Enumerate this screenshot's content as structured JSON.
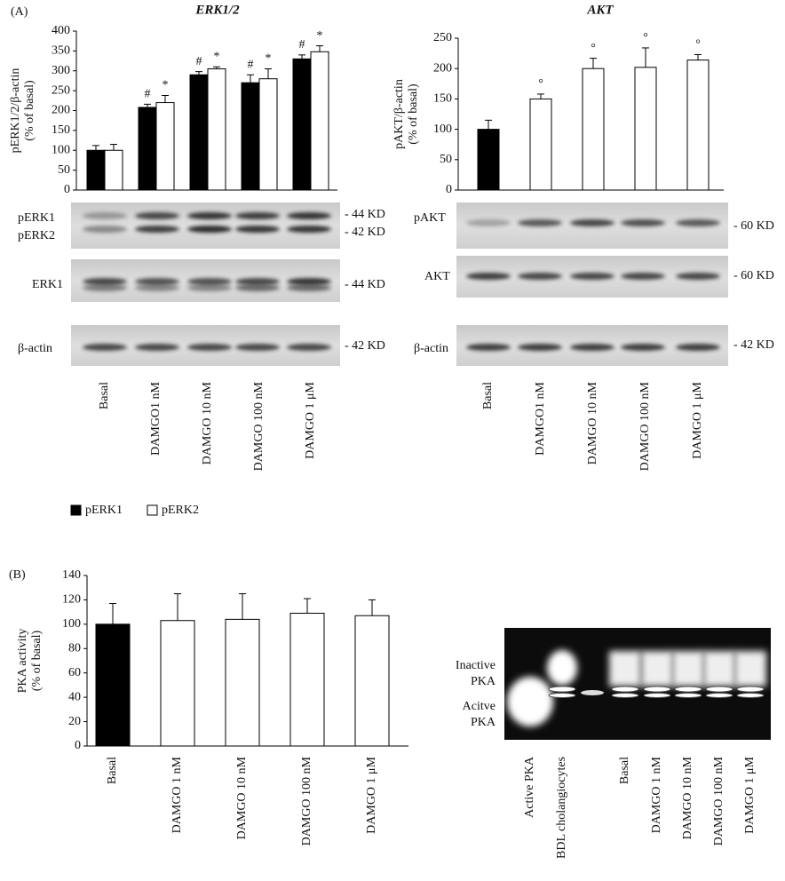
{
  "panel_labels": [
    "(A)",
    "(B)"
  ],
  "chart_data": [
    {
      "type": "bar",
      "title": "ERK1/2",
      "ylabel": [
        "pERK1/2/β-actin",
        "(% of basal)"
      ],
      "categories": [
        "Basal",
        "DAMGO1 nM",
        "DAMGO 10 nM",
        "DAMGO 100 nM",
        "DAMGO 1 μM"
      ],
      "series": [
        {
          "name": "pERK1",
          "color": "#000000",
          "values": [
            100,
            208,
            290,
            270,
            330
          ],
          "errors": [
            12,
            8,
            8,
            20,
            10
          ],
          "annotations": [
            null,
            "#",
            "#",
            "#",
            "#"
          ]
        },
        {
          "name": "pERK2",
          "color": "#ffffff",
          "values": [
            100,
            220,
            305,
            280,
            348
          ],
          "errors": [
            15,
            18,
            5,
            25,
            15
          ],
          "annotations": [
            null,
            "*",
            "*",
            "*",
            "*"
          ]
        }
      ],
      "ylim": [
        0,
        400
      ],
      "yticks": [
        0,
        50,
        100,
        150,
        200,
        250,
        300,
        350,
        400
      ],
      "legend": "bottom"
    },
    {
      "type": "bar",
      "title": "AKT",
      "ylabel": [
        "pAKT/β-actin",
        "(% of basal)"
      ],
      "categories": [
        "Basal",
        "DAMGO1 nM",
        "DAMGO 10 nM",
        "DAMGO 100 nM",
        "DAMGO 1 μM"
      ],
      "colors": [
        "#000000",
        "#ffffff",
        "#ffffff",
        "#ffffff",
        "#ffffff"
      ],
      "values": [
        100,
        150,
        200,
        202,
        214
      ],
      "errors": [
        15,
        8,
        17,
        32,
        9
      ],
      "annotations": [
        null,
        "°",
        "°",
        "°",
        "°"
      ],
      "ylim": [
        0,
        250
      ],
      "yticks": [
        0,
        50,
        100,
        150,
        200,
        250
      ]
    },
    {
      "type": "bar",
      "ylabel": [
        "PKA activity",
        "(% of basal)"
      ],
      "categories": [
        "Basal",
        "DAMGO 1 nM",
        "DAMGO 10 nM",
        "DAMGO 100 nM",
        "DAMGO 1 μM"
      ],
      "colors": [
        "#000000",
        "#ffffff",
        "#ffffff",
        "#ffffff",
        "#ffffff"
      ],
      "values": [
        100,
        103,
        104,
        109,
        107
      ],
      "errors": [
        17,
        22,
        21,
        12,
        13
      ],
      "ylim": [
        0,
        140
      ],
      "yticks": [
        0,
        20,
        40,
        60,
        80,
        100,
        120,
        140
      ]
    }
  ],
  "blots": {
    "erk": [
      {
        "labels": [
          "pERK1",
          "pERK2"
        ],
        "sizes": [
          "- 44 KD",
          "- 42 KD"
        ]
      },
      {
        "labels": [
          "ERK1"
        ],
        "sizes": [
          "- 44 KD"
        ]
      },
      {
        "labels": [
          "β-actin"
        ],
        "sizes": [
          "- 42 KD"
        ]
      }
    ],
    "akt": [
      {
        "labels": [
          "pAKT"
        ],
        "sizes": [
          "- 60 KD"
        ]
      },
      {
        "labels": [
          "AKT"
        ],
        "sizes": [
          "- 60 KD"
        ]
      },
      {
        "labels": [
          "β-actin"
        ],
        "sizes": [
          "- 42 KD"
        ]
      }
    ]
  },
  "gel": {
    "band_labels": [
      [
        "Inactive",
        "PKA"
      ],
      [
        "Acitve",
        "PKA"
      ]
    ],
    "lanes": [
      "Active PKA",
      "BDL cholangiocytes",
      null,
      "Basal",
      "DAMGO 1 nM",
      "DAMGO 10 nM",
      "DAMGO 100 nM",
      "DAMGO 1 μM"
    ]
  }
}
